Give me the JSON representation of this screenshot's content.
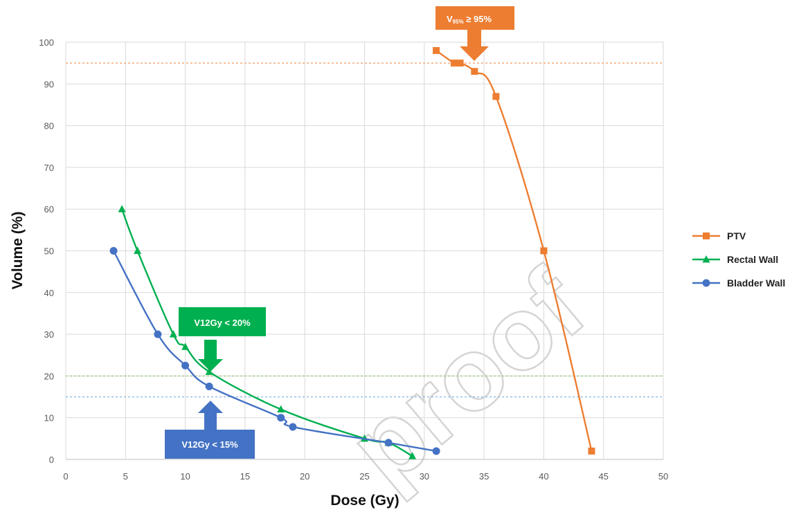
{
  "watermark": "proof",
  "chart_data": {
    "type": "line",
    "title": "",
    "xlabel": "Dose (Gy)",
    "ylabel": "Volume (%)",
    "xlim": [
      0,
      50
    ],
    "ylim": [
      0,
      100
    ],
    "xticks": [
      0,
      5,
      10,
      15,
      20,
      25,
      30,
      35,
      40,
      45,
      50
    ],
    "yticks": [
      0,
      10,
      20,
      30,
      40,
      50,
      60,
      70,
      80,
      90,
      100
    ],
    "grid": true,
    "legend_position": "right",
    "series": [
      {
        "name": "PTV",
        "color": "#ED7D31",
        "marker": "square",
        "x": [
          31,
          32.5,
          33,
          34.2,
          36,
          40,
          44
        ],
        "y": [
          98,
          95,
          95,
          93,
          87,
          50,
          2
        ]
      },
      {
        "name": "Rectal Wall",
        "color": "#00B050",
        "marker": "triangle",
        "x": [
          4.7,
          6,
          9,
          10,
          12,
          18,
          25,
          27,
          29
        ],
        "y": [
          60,
          50,
          30,
          27,
          21,
          12,
          5,
          4,
          0.8
        ]
      },
      {
        "name": "Bladder Wall",
        "color": "#4472C4",
        "marker": "circle",
        "x": [
          4,
          7.7,
          10,
          12,
          18,
          19,
          27,
          31
        ],
        "y": [
          50,
          30,
          22.5,
          17.5,
          10,
          7.8,
          4,
          2
        ]
      }
    ],
    "reference_lines": [
      {
        "y": 95,
        "color": "#F4B183"
      },
      {
        "y": 20,
        "color": "#A9D18E"
      },
      {
        "y": 15,
        "color": "#9DC3E6"
      }
    ],
    "annotations": [
      {
        "text_main": "V",
        "text_sub": "95%",
        "text_rest": " ≥ 95%",
        "color": "#ED7D31",
        "arrow": "down",
        "target_x": 34.2,
        "target_y": 95
      },
      {
        "text": "V12Gy < 20%",
        "color": "#00B050",
        "arrow": "down",
        "target_x": 12,
        "target_y": 20
      },
      {
        "text": "V12Gy < 15%",
        "color": "#4472C4",
        "arrow": "up",
        "target_x": 12,
        "target_y": 15
      }
    ]
  }
}
